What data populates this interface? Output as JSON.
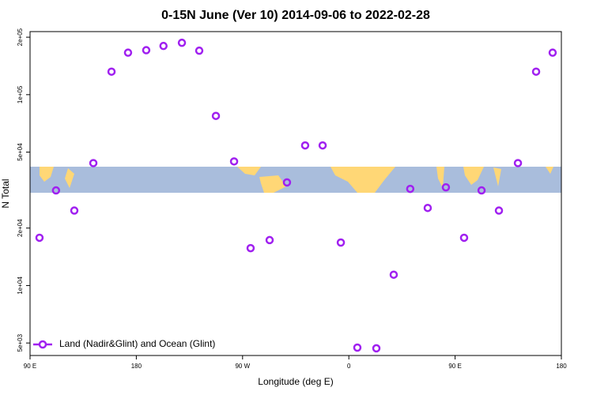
{
  "chart_data": {
    "type": "scatter",
    "title": "0-15N June (Ver 10)   2014-09-06 to 2022-02-28",
    "x_label": "Longitude (deg E)",
    "y_label": "N Total",
    "log_y": true,
    "legend_position": "lower left",
    "xlim": [
      90,
      540
    ],
    "xticks": [
      {
        "value": 90,
        "label": "90 E"
      },
      {
        "value": 180,
        "label": "180"
      },
      {
        "value": 270,
        "label": "90 W"
      },
      {
        "value": 360,
        "label": "0"
      },
      {
        "value": 450,
        "label": "90 E"
      },
      {
        "value": 540,
        "label": "180"
      }
    ],
    "ylim": [
      4300,
      214000
    ],
    "yticks": [
      {
        "value": 5000,
        "label": "5e+03"
      },
      {
        "value": 10000,
        "label": "1e+04"
      },
      {
        "value": 20000,
        "label": "2e+04"
      },
      {
        "value": 50000,
        "label": "5e+04"
      },
      {
        "value": 100000,
        "label": "1e+05"
      },
      {
        "value": 200000,
        "label": "2e+05"
      }
    ],
    "series": [
      {
        "name": "Land (Nadir&Glint) and Ocean (Glint)",
        "color": "#a020f0",
        "x": [
          98,
          112,
          127.5,
          143.6,
          159,
          173,
          188.4,
          203,
          218.6,
          233.3,
          247.4,
          262.8,
          276.8,
          292.9,
          307.6,
          323,
          337.8,
          353.2,
          367.2,
          383.3,
          398,
          412,
          426.8,
          442.2,
          457.6,
          472.4,
          487.1,
          503.2,
          518.6,
          532.6
        ],
        "values": [
          17800,
          31500,
          24700,
          43800,
          132000,
          166000,
          171000,
          180000,
          187000,
          170000,
          77400,
          44700,
          15700,
          17300,
          34700,
          54200,
          54200,
          16800,
          4730,
          4690,
          11400,
          32100,
          25500,
          32700,
          17800,
          31500,
          24700,
          43800,
          132000,
          166000
        ]
      }
    ]
  }
}
